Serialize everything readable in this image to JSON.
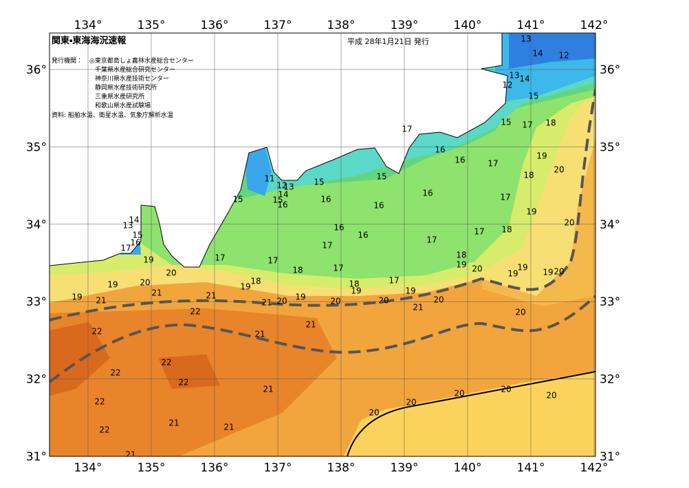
{
  "header": {
    "title": "関東・東海海況速報",
    "issue_date": "平成 28年1月21日 発行",
    "agencies_label": "発行機関：",
    "agencies": [
      "◎東京都島しょ農林水産総合センター",
      "千葉県水産総合研究センター",
      "神奈川県水産技術センター",
      "静岡県水産技術研究所",
      "三重県水産研究所",
      "和歌山県水産試験場"
    ],
    "source": "資料: 船舶水温、衛星水温、気象庁解析水温"
  },
  "map": {
    "longitude_labels": [
      "134°",
      "135°",
      "136°",
      "137°",
      "138°",
      "139°",
      "140°",
      "141°",
      "142°"
    ],
    "latitude_labels": [
      "31°",
      "32°",
      "33°",
      "34°",
      "35°",
      "36°"
    ],
    "contour_labels": [
      13,
      14,
      12,
      13,
      14,
      12,
      15,
      15,
      17,
      18,
      17,
      16,
      16,
      17,
      19,
      20,
      18,
      17,
      19,
      20,
      18,
      17,
      17,
      11,
      12,
      13,
      14,
      15,
      16,
      15,
      15,
      16,
      16,
      16,
      16,
      16,
      17,
      15,
      14,
      13,
      15,
      16,
      17,
      17,
      17,
      18,
      17,
      18,
      19,
      20,
      19,
      19,
      19,
      20,
      19,
      20,
      18,
      19,
      18,
      19,
      17,
      19,
      19,
      20,
      19,
      21,
      21,
      21,
      21,
      20,
      19,
      20,
      20,
      21,
      20,
      20,
      22,
      22,
      21,
      21,
      22,
      22,
      22,
      21,
      22,
      20,
      20,
      20,
      20,
      20,
      22,
      21,
      21,
      21
    ]
  }
}
